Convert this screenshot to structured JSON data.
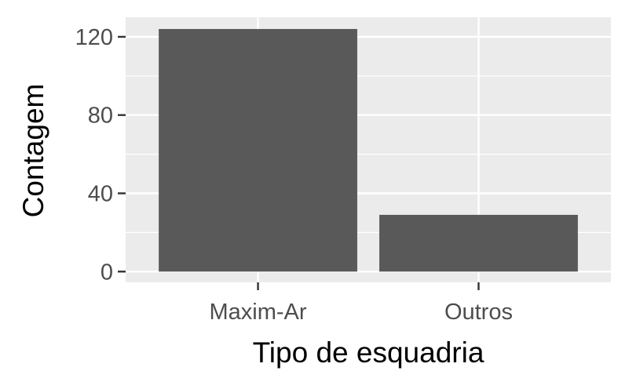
{
  "chart_data": {
    "type": "bar",
    "categories": [
      "Maxim-Ar",
      "Outros"
    ],
    "values": [
      124,
      29
    ],
    "xlabel": "Tipo de esquadria",
    "ylabel": "Contagem",
    "ylim": [
      -5.5,
      130
    ],
    "yticks": [
      0,
      40,
      80,
      120
    ],
    "grid": true,
    "colors": {
      "bar": "#595959",
      "panel": "#ebebeb",
      "grid": "#ffffff",
      "tick": "#333333",
      "tick_label": "#4d4d4d"
    }
  }
}
